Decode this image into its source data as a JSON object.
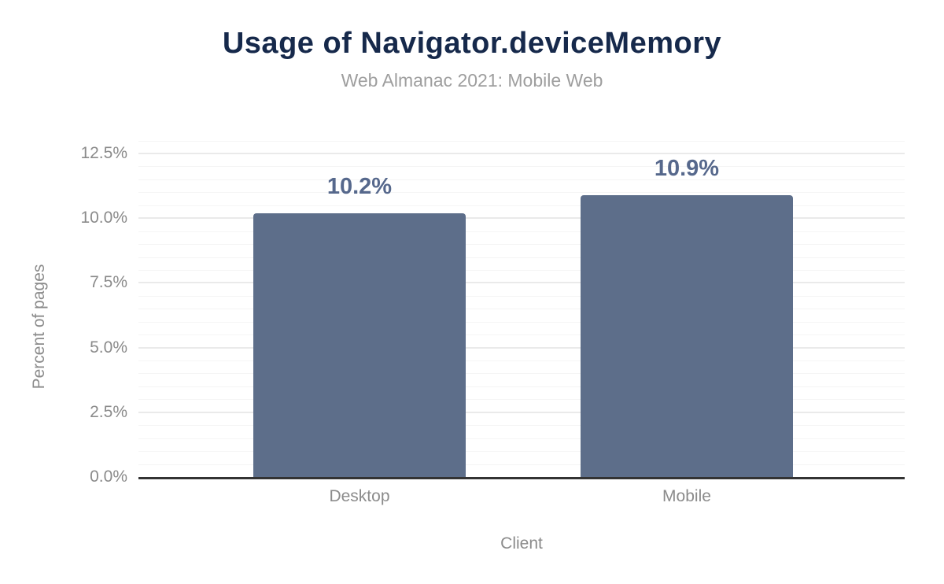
{
  "chart_data": {
    "type": "bar",
    "title": "Usage of Navigator.deviceMemory",
    "subtitle": "Web Almanac 2021: Mobile Web",
    "xlabel": "Client",
    "ylabel": "Percent of pages",
    "categories": [
      "Desktop",
      "Mobile"
    ],
    "values": [
      10.2,
      10.9
    ],
    "value_labels": [
      "10.2%",
      "10.9%"
    ],
    "yticks": {
      "values": [
        0,
        2.5,
        5,
        7.5,
        10,
        12.5
      ],
      "labels": [
        "0.0%",
        "2.5%",
        "5.0%",
        "7.5%",
        "10.0%",
        "12.5%"
      ]
    },
    "ylim": [
      0,
      13.26
    ],
    "grid": {
      "major_step": 2.5,
      "minor_step": 0.5,
      "grid_on": true
    },
    "legend_position": "none",
    "colors": {
      "bar": "#5d6e8a",
      "value_label": "#56688c",
      "title": "#16294b",
      "subtitle": "#9e9e9e",
      "axis_text": "#8b8b8b",
      "axis_line": "#333333",
      "grid_major": "#eaeaea",
      "grid_minor": "#f5f5f5"
    }
  }
}
